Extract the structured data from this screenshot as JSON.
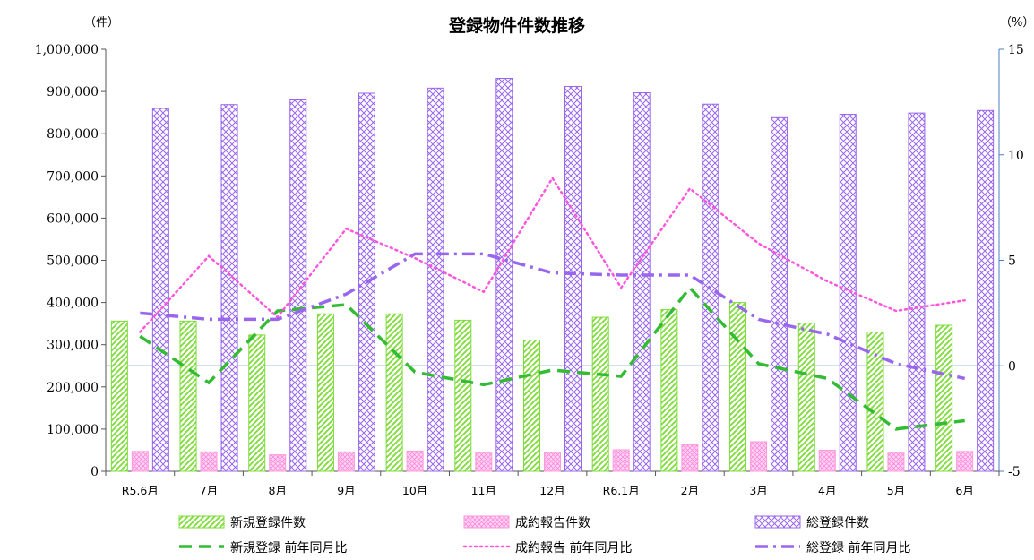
{
  "chart_data": {
    "type": "bar",
    "title": "登録物件件数推移",
    "y_unit_left": "（件）",
    "y_unit_right": "（%）",
    "categories": [
      "R5.6月",
      "7月",
      "8月",
      "9月",
      "10月",
      "11月",
      "12月",
      "R6.1月",
      "2月",
      "3月",
      "4月",
      "5月",
      "6月"
    ],
    "ylim_left": [
      0,
      1000000
    ],
    "yticks_left": [
      "0",
      "100,000",
      "200,000",
      "300,000",
      "400,000",
      "500,000",
      "600,000",
      "700,000",
      "800,000",
      "900,000",
      "1,000,000"
    ],
    "ylim_right": [
      -5,
      15
    ],
    "yticks_right": [
      "-5",
      "0",
      "5",
      "10",
      "15"
    ],
    "grid": false,
    "legend_position": "bottom",
    "bar_series": [
      {
        "name": "新規登録件数",
        "color": "#7ddc38",
        "values": [
          356000,
          356000,
          323000,
          373000,
          373000,
          358000,
          311000,
          365000,
          383000,
          400000,
          351000,
          330000,
          346000
        ]
      },
      {
        "name": "成約報告件数",
        "color": "#ff99dd",
        "values": [
          47000,
          46000,
          39000,
          46000,
          48000,
          45000,
          45000,
          51000,
          63000,
          70000,
          50000,
          45000,
          47000
        ]
      },
      {
        "name": "総登録件数",
        "color": "#9966ee",
        "values": [
          860000,
          869000,
          880000,
          896000,
          908000,
          931000,
          912000,
          897000,
          870000,
          838000,
          846000,
          849000,
          855000
        ]
      }
    ],
    "line_series": [
      {
        "name": "新規登録 前年同月比",
        "color": "#33bb33",
        "style": "dash",
        "values": [
          1.4,
          -0.8,
          2.6,
          2.9,
          -0.3,
          -0.9,
          -0.2,
          -0.5,
          3.7,
          0.1,
          -0.6,
          -3.0,
          -2.6
        ]
      },
      {
        "name": "成約報告 前年同月比",
        "color": "#ff55dd",
        "style": "dot",
        "values": [
          1.6,
          5.2,
          2.3,
          6.5,
          5.1,
          3.5,
          8.9,
          3.7,
          8.4,
          5.8,
          4.0,
          2.6,
          3.1
        ]
      },
      {
        "name": "総登録 前年同月比",
        "color": "#9966ee",
        "style": "dashdot",
        "values": [
          2.5,
          2.2,
          2.2,
          3.4,
          5.3,
          5.3,
          4.4,
          4.3,
          4.3,
          2.2,
          1.5,
          0.1,
          -0.6
        ]
      }
    ]
  }
}
